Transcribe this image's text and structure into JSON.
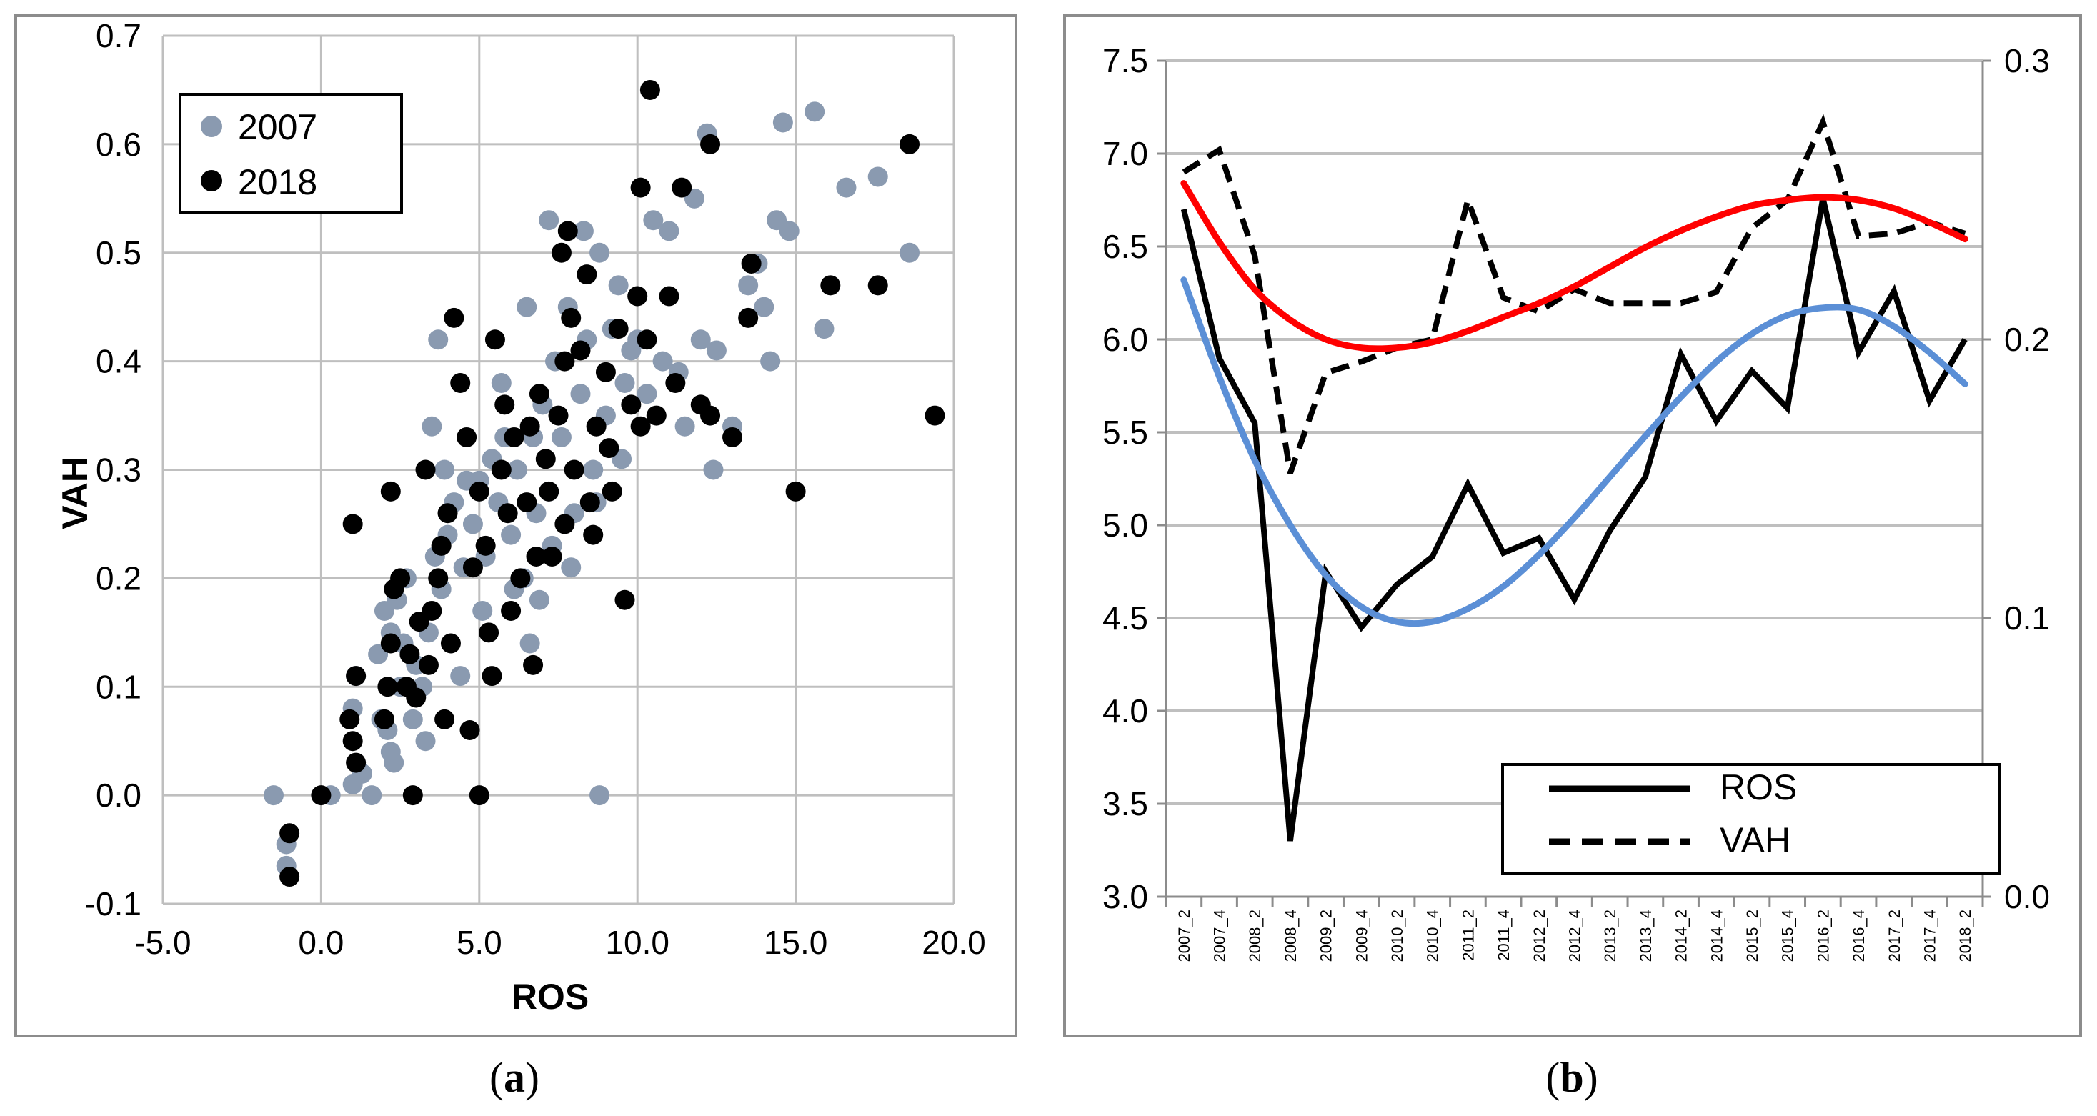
{
  "colors": {
    "s2007": "#8a9ab0",
    "s2018": "#000000",
    "ros": "#000000",
    "vah": "#000000",
    "vahTrend": "#ff0000",
    "rosTrend": "#5b8fd6",
    "grid": "#bfbfbf",
    "frame": "#8c8c8c"
  },
  "chart_data": [
    {
      "panel": "(a)",
      "caption": {
        "open": "(",
        "letter": "a",
        "close": ")"
      },
      "type": "scatter",
      "xlabel": "ROS",
      "ylabel": "VAH",
      "xlim": [
        -5,
        20
      ],
      "ylim": [
        -0.1,
        0.7
      ],
      "xticks": [
        "-5.0",
        "0.0",
        "5.0",
        "10.0",
        "15.0",
        "20.0"
      ],
      "yticks": [
        "-0.1",
        "0.0",
        "0.1",
        "0.2",
        "0.3",
        "0.4",
        "0.5",
        "0.6",
        "0.7"
      ],
      "legend": {
        "position": "top-left",
        "entries": [
          "2007",
          "2018"
        ]
      },
      "series": [
        {
          "name": "2007",
          "points": [
            [
              -1.5,
              0.0
            ],
            [
              -1.1,
              -0.045
            ],
            [
              -1.1,
              -0.065
            ],
            [
              0.3,
              0.0
            ],
            [
              1.0,
              0.01
            ],
            [
              1.1,
              0.11
            ],
            [
              1.0,
              0.08
            ],
            [
              1.6,
              0.0
            ],
            [
              8.8,
              0.0
            ],
            [
              1.9,
              0.07
            ],
            [
              2.1,
              0.06
            ],
            [
              2.2,
              0.04
            ],
            [
              2.3,
              0.03
            ],
            [
              1.8,
              0.13
            ],
            [
              2.0,
              0.17
            ],
            [
              2.2,
              0.15
            ],
            [
              2.5,
              0.1
            ],
            [
              2.7,
              0.2
            ],
            [
              2.4,
              0.18
            ],
            [
              3.0,
              0.12
            ],
            [
              3.2,
              0.1
            ],
            [
              3.4,
              0.15
            ],
            [
              3.6,
              0.22
            ],
            [
              3.8,
              0.19
            ],
            [
              4.0,
              0.24
            ],
            [
              3.9,
              0.3
            ],
            [
              4.2,
              0.27
            ],
            [
              4.5,
              0.21
            ],
            [
              4.8,
              0.25
            ],
            [
              5.0,
              0.29
            ],
            [
              5.2,
              0.22
            ],
            [
              5.4,
              0.31
            ],
            [
              5.6,
              0.27
            ],
            [
              5.8,
              0.33
            ],
            [
              6.0,
              0.24
            ],
            [
              6.2,
              0.3
            ],
            [
              6.4,
              0.2
            ],
            [
              6.6,
              0.14
            ],
            [
              6.8,
              0.26
            ],
            [
              7.0,
              0.36
            ],
            [
              7.2,
              0.28
            ],
            [
              7.4,
              0.4
            ],
            [
              7.6,
              0.33
            ],
            [
              7.8,
              0.45
            ],
            [
              8.0,
              0.26
            ],
            [
              8.2,
              0.37
            ],
            [
              8.4,
              0.42
            ],
            [
              8.6,
              0.3
            ],
            [
              8.8,
              0.5
            ],
            [
              9.0,
              0.35
            ],
            [
              9.2,
              0.43
            ],
            [
              9.4,
              0.47
            ],
            [
              9.6,
              0.38
            ],
            [
              9.8,
              0.41
            ],
            [
              10.0,
              0.42
            ],
            [
              10.3,
              0.37
            ],
            [
              10.5,
              0.53
            ],
            [
              10.8,
              0.4
            ],
            [
              11.0,
              0.52
            ],
            [
              11.3,
              0.39
            ],
            [
              11.5,
              0.34
            ],
            [
              11.8,
              0.55
            ],
            [
              12.0,
              0.42
            ],
            [
              12.2,
              0.61
            ],
            [
              12.4,
              0.3
            ],
            [
              12.5,
              0.41
            ],
            [
              13.0,
              0.34
            ],
            [
              13.5,
              0.47
            ],
            [
              13.8,
              0.49
            ],
            [
              14.0,
              0.45
            ],
            [
              14.2,
              0.4
            ],
            [
              14.4,
              0.53
            ],
            [
              14.6,
              0.62
            ],
            [
              14.8,
              0.52
            ],
            [
              15.6,
              0.63
            ],
            [
              15.9,
              0.43
            ],
            [
              16.6,
              0.56
            ],
            [
              17.6,
              0.57
            ],
            [
              18.6,
              0.5
            ],
            [
              3.7,
              0.42
            ],
            [
              3.5,
              0.34
            ],
            [
              6.5,
              0.45
            ],
            [
              7.2,
              0.53
            ],
            [
              8.3,
              0.52
            ],
            [
              5.7,
              0.38
            ],
            [
              4.6,
              0.29
            ],
            [
              6.9,
              0.18
            ],
            [
              2.9,
              0.07
            ],
            [
              3.3,
              0.05
            ],
            [
              1.3,
              0.02
            ],
            [
              2.6,
              0.14
            ],
            [
              4.4,
              0.11
            ],
            [
              5.1,
              0.17
            ],
            [
              6.1,
              0.19
            ],
            [
              7.9,
              0.21
            ],
            [
              8.7,
              0.27
            ],
            [
              9.5,
              0.31
            ],
            [
              7.3,
              0.23
            ],
            [
              6.7,
              0.33
            ]
          ]
        },
        {
          "name": "2018",
          "points": [
            [
              -1.0,
              -0.035
            ],
            [
              -1.0,
              -0.075
            ],
            [
              0.0,
              0.0
            ],
            [
              0.9,
              0.07
            ],
            [
              1.0,
              0.05
            ],
            [
              1.1,
              0.03
            ],
            [
              1.0,
              0.25
            ],
            [
              1.1,
              0.11
            ],
            [
              2.0,
              0.07
            ],
            [
              2.1,
              0.1
            ],
            [
              2.2,
              0.14
            ],
            [
              2.3,
              0.19
            ],
            [
              2.2,
              0.28
            ],
            [
              2.5,
              0.2
            ],
            [
              2.8,
              0.13
            ],
            [
              2.9,
              0.0
            ],
            [
              3.0,
              0.09
            ],
            [
              3.1,
              0.16
            ],
            [
              3.3,
              0.3
            ],
            [
              3.5,
              0.17
            ],
            [
              3.7,
              0.2
            ],
            [
              3.9,
              0.07
            ],
            [
              4.0,
              0.26
            ],
            [
              4.2,
              0.44
            ],
            [
              4.4,
              0.38
            ],
            [
              4.6,
              0.33
            ],
            [
              4.8,
              0.21
            ],
            [
              5.0,
              0.28
            ],
            [
              5.0,
              0.0
            ],
            [
              5.2,
              0.23
            ],
            [
              5.3,
              0.15
            ],
            [
              5.5,
              0.42
            ],
            [
              5.7,
              0.3
            ],
            [
              5.9,
              0.26
            ],
            [
              6.1,
              0.33
            ],
            [
              6.3,
              0.2
            ],
            [
              6.5,
              0.27
            ],
            [
              6.7,
              0.12
            ],
            [
              6.9,
              0.37
            ],
            [
              7.1,
              0.31
            ],
            [
              7.3,
              0.22
            ],
            [
              7.5,
              0.35
            ],
            [
              7.6,
              0.5
            ],
            [
              7.7,
              0.25
            ],
            [
              7.8,
              0.52
            ],
            [
              8.0,
              0.3
            ],
            [
              8.2,
              0.41
            ],
            [
              8.4,
              0.48
            ],
            [
              8.5,
              0.27
            ],
            [
              8.7,
              0.34
            ],
            [
              9.0,
              0.39
            ],
            [
              9.2,
              0.28
            ],
            [
              9.4,
              0.43
            ],
            [
              9.6,
              0.18
            ],
            [
              9.8,
              0.36
            ],
            [
              10.0,
              0.46
            ],
            [
              10.1,
              0.34
            ],
            [
              10.3,
              0.42
            ],
            [
              10.4,
              0.65
            ],
            [
              10.6,
              0.35
            ],
            [
              11.0,
              0.46
            ],
            [
              11.2,
              0.38
            ],
            [
              11.4,
              0.56
            ],
            [
              12.0,
              0.36
            ],
            [
              12.3,
              0.35
            ],
            [
              12.3,
              0.6
            ],
            [
              13.0,
              0.33
            ],
            [
              13.5,
              0.44
            ],
            [
              13.6,
              0.49
            ],
            [
              15.0,
              0.28
            ],
            [
              16.1,
              0.47
            ],
            [
              17.6,
              0.47
            ],
            [
              18.6,
              0.6
            ],
            [
              19.4,
              0.35
            ],
            [
              10.1,
              0.56
            ],
            [
              5.8,
              0.36
            ],
            [
              6.6,
              0.34
            ],
            [
              4.7,
              0.06
            ],
            [
              3.8,
              0.23
            ],
            [
              2.7,
              0.1
            ],
            [
              7.9,
              0.44
            ],
            [
              9.1,
              0.32
            ],
            [
              6.0,
              0.17
            ],
            [
              5.4,
              0.11
            ],
            [
              7.2,
              0.28
            ],
            [
              8.6,
              0.24
            ],
            [
              4.1,
              0.14
            ],
            [
              3.4,
              0.12
            ],
            [
              6.8,
              0.22
            ],
            [
              7.7,
              0.4
            ]
          ]
        }
      ]
    },
    {
      "panel": "(b)",
      "caption": {
        "open": "(",
        "letter": "b",
        "close": ")"
      },
      "type": "line",
      "x": [
        "2007_2",
        "2007_4",
        "2008_2",
        "2008_4",
        "2009_2",
        "2009_4",
        "2010_2",
        "2010_4",
        "2011_2",
        "2011_4",
        "2012_2",
        "2012_4",
        "2013_2",
        "2013_4",
        "2014_2",
        "2014_4",
        "2015_2",
        "2015_4",
        "2016_2",
        "2016_4",
        "2017_2",
        "2017_4",
        "2018_2"
      ],
      "ylim_left": [
        3.0,
        7.5
      ],
      "ylim_right": [
        0.0,
        0.3
      ],
      "yticks_left": [
        "3.0",
        "3.5",
        "4.0",
        "4.5",
        "5.0",
        "5.5",
        "6.0",
        "6.5",
        "7.0",
        "7.5"
      ],
      "yticks_right": [
        "0.0",
        "0.1",
        "0.2",
        "0.3"
      ],
      "legend": {
        "position": "bottom-right",
        "entries": [
          "ROS",
          "VAH"
        ]
      },
      "series": [
        {
          "name": "ROS",
          "axis": "left",
          "style": "solid",
          "values": [
            6.7,
            5.9,
            5.55,
            3.3,
            4.75,
            4.45,
            4.68,
            4.83,
            5.22,
            4.85,
            4.93,
            4.6,
            4.97,
            5.26,
            5.92,
            5.56,
            5.83,
            5.63,
            6.76,
            5.93,
            6.26,
            5.67,
            6.0
          ]
        },
        {
          "name": "VAH",
          "axis": "right",
          "style": "dashed",
          "values": [
            0.26,
            0.268,
            0.23,
            0.152,
            0.188,
            0.192,
            0.197,
            0.2,
            0.25,
            0.215,
            0.21,
            0.218,
            0.213,
            0.213,
            0.213,
            0.217,
            0.24,
            0.25,
            0.278,
            0.237,
            0.238,
            0.242,
            0.238
          ]
        },
        {
          "name": "VAH trend",
          "axis": "right",
          "style": "trend",
          "values": [
            0.256,
            0.235,
            0.218,
            0.207,
            0.2,
            0.197,
            0.197,
            0.199,
            0.203,
            0.208,
            0.213,
            0.219,
            0.226,
            0.233,
            0.239,
            0.244,
            0.248,
            0.25,
            0.251,
            0.25,
            0.247,
            0.242,
            0.236
          ]
        },
        {
          "name": "ROS trend",
          "axis": "left",
          "style": "trend",
          "values": [
            6.32,
            5.8,
            5.35,
            5.0,
            4.73,
            4.56,
            4.48,
            4.48,
            4.55,
            4.67,
            4.84,
            5.04,
            5.26,
            5.48,
            5.69,
            5.88,
            6.03,
            6.13,
            6.17,
            6.16,
            6.07,
            5.93,
            5.76
          ]
        }
      ]
    }
  ]
}
